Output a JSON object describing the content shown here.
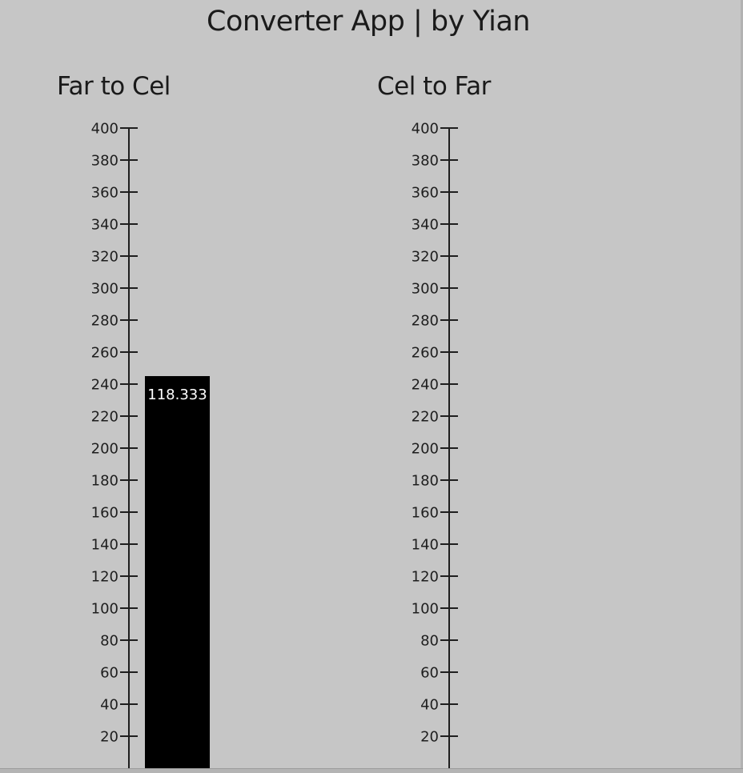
{
  "app": {
    "title": "Converter App | by Yian"
  },
  "colors": {
    "background": "#c6c6c6",
    "axis": "#1e1e1e",
    "bar": "#000000",
    "bar_label": "#ffffff"
  },
  "panels": [
    {
      "title": "Far to Cel"
    },
    {
      "title": "Cel to Far"
    }
  ],
  "chart_data": [
    {
      "type": "bar",
      "title": "Far to Cel",
      "xlabel": "",
      "ylabel": "",
      "ylim": [
        0,
        400
      ],
      "y_ticks": [
        20,
        40,
        60,
        80,
        100,
        120,
        140,
        160,
        180,
        200,
        220,
        240,
        260,
        280,
        300,
        320,
        340,
        360,
        380,
        400
      ],
      "categories": [
        ""
      ],
      "values": [
        245
      ],
      "data_labels": [
        "118.333"
      ],
      "grid": false
    },
    {
      "type": "bar",
      "title": "Cel to Far",
      "xlabel": "",
      "ylabel": "",
      "ylim": [
        0,
        400
      ],
      "y_ticks": [
        20,
        40,
        60,
        80,
        100,
        120,
        140,
        160,
        180,
        200,
        220,
        240,
        260,
        280,
        300,
        320,
        340,
        360,
        380,
        400
      ],
      "categories": [],
      "values": [],
      "data_labels": [],
      "grid": false
    }
  ]
}
